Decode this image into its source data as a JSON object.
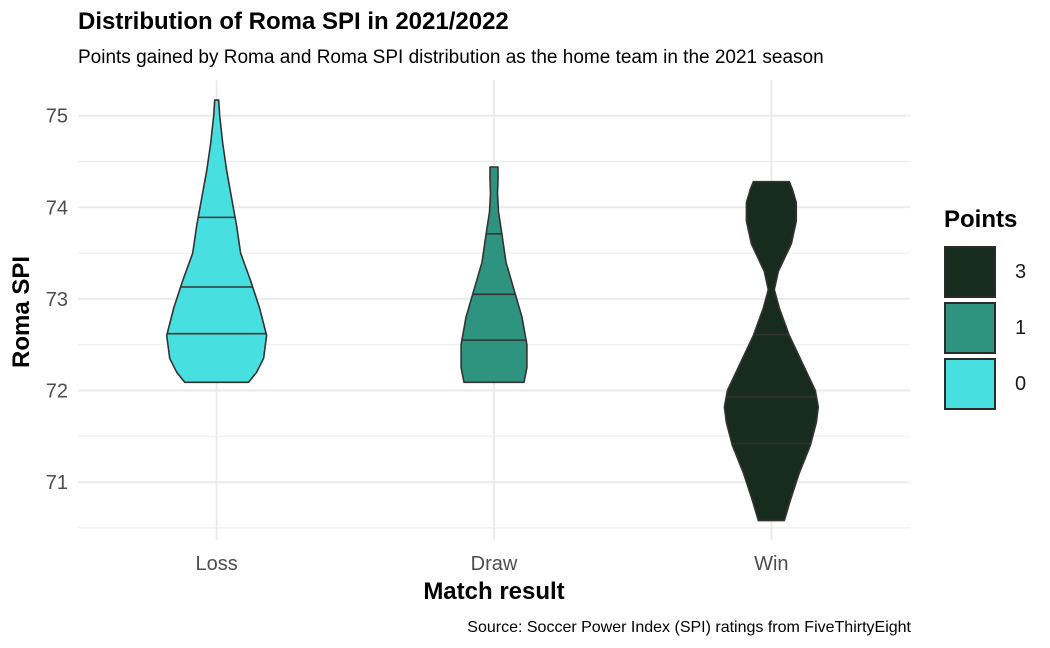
{
  "chart_data": {
    "type": "violin",
    "title": "Distribution of Roma SPI in 2021/2022",
    "subtitle": "Points gained by Roma and Roma SPI distribution as the home team in the 2021 season",
    "caption": "Source: Soccer Power Index (SPI) ratings from FiveThirtyEight",
    "xlabel": "Match result",
    "ylabel": "Roma SPI",
    "categories": [
      "Loss",
      "Draw",
      "Win"
    ],
    "ylim": [
      70.4,
      75.4
    ],
    "yticks": [
      71,
      72,
      73,
      74,
      75
    ],
    "grid": true,
    "legend": {
      "title": "Points",
      "position": "right",
      "entries": [
        {
          "label": "3",
          "color": "#172b1e"
        },
        {
          "label": "1",
          "color": "#2e9480"
        },
        {
          "label": "0",
          "color": "#48dfe0"
        }
      ]
    },
    "series": [
      {
        "category": "Loss",
        "points": "0",
        "color": "#48dfe0",
        "quantiles": [
          72.62,
          73.13,
          73.89
        ],
        "density": [
          [
            72.09,
            0.32
          ],
          [
            72.2,
            0.4
          ],
          [
            72.35,
            0.47
          ],
          [
            72.6,
            0.5
          ],
          [
            72.9,
            0.43
          ],
          [
            73.2,
            0.34
          ],
          [
            73.5,
            0.24
          ],
          [
            73.8,
            0.2
          ],
          [
            74.1,
            0.15
          ],
          [
            74.4,
            0.1
          ],
          [
            74.7,
            0.06
          ],
          [
            75.0,
            0.03
          ],
          [
            75.17,
            0.02
          ]
        ]
      },
      {
        "category": "Draw",
        "points": "1",
        "color": "#2e9480",
        "quantiles": [
          72.55,
          73.05,
          73.71
        ],
        "density": [
          [
            72.09,
            0.3
          ],
          [
            72.25,
            0.33
          ],
          [
            72.5,
            0.33
          ],
          [
            72.8,
            0.28
          ],
          [
            73.1,
            0.2
          ],
          [
            73.4,
            0.12
          ],
          [
            73.7,
            0.08
          ],
          [
            73.95,
            0.045
          ],
          [
            74.15,
            0.035
          ],
          [
            74.3,
            0.04
          ],
          [
            74.44,
            0.04
          ]
        ]
      },
      {
        "category": "Win",
        "points": "3",
        "color": "#172b1e",
        "quantiles": [
          71.42,
          71.93,
          72.61
        ],
        "density": [
          [
            70.58,
            0.13
          ],
          [
            70.8,
            0.19
          ],
          [
            71.1,
            0.28
          ],
          [
            71.4,
            0.39
          ],
          [
            71.65,
            0.45
          ],
          [
            71.82,
            0.47
          ],
          [
            72.0,
            0.44
          ],
          [
            72.3,
            0.31
          ],
          [
            72.6,
            0.18
          ],
          [
            72.9,
            0.08
          ],
          [
            73.1,
            0.03
          ],
          [
            73.3,
            0.07
          ],
          [
            73.6,
            0.2
          ],
          [
            73.85,
            0.25
          ],
          [
            74.05,
            0.25
          ],
          [
            74.2,
            0.21
          ],
          [
            74.28,
            0.18
          ]
        ]
      }
    ]
  }
}
